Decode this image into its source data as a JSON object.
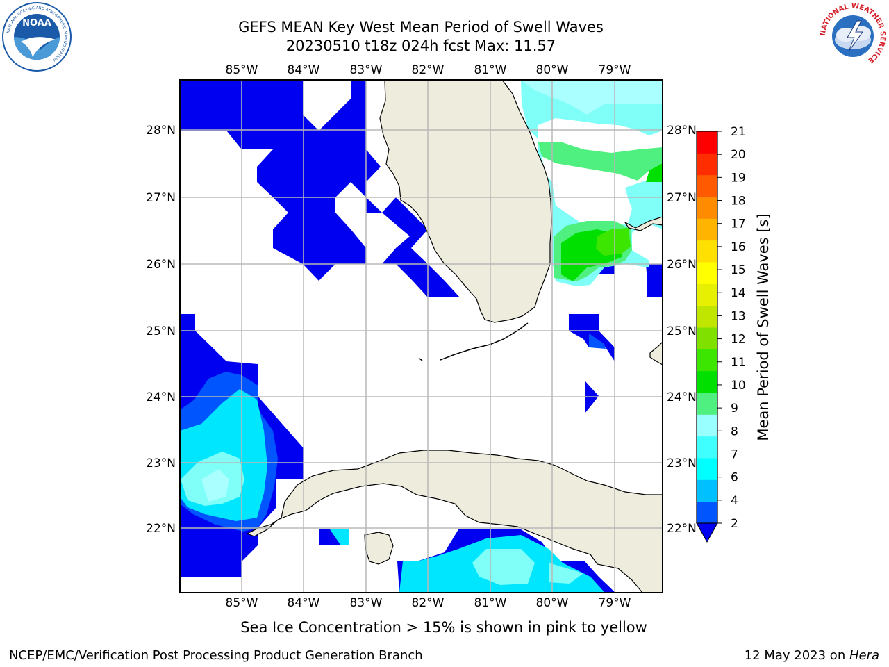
{
  "header": {
    "title_line1": "GEFS MEAN Key West Mean Period of Swell Waves",
    "title_line2": "20230510 t18z 024h fcst   Max: 11.57"
  },
  "logos": {
    "left": {
      "name": "NOAA",
      "ring_text": "NATIONAL OCEANIC AND ATMOSPHERIC ADMINISTRATION",
      "bottom_text": "U.S. DEPARTMENT OF COMMERCE",
      "color": "#1a5aa8"
    },
    "right": {
      "name": "NATIONAL WEATHER SERVICE",
      "color": "#d4202a"
    }
  },
  "map": {
    "lon_labels": [
      "85°W",
      "84°W",
      "83°W",
      "82°W",
      "81°W",
      "80°W",
      "79°W"
    ],
    "lat_labels": [
      "28°N",
      "27°N",
      "26°N",
      "25°N",
      "24°N",
      "23°N",
      "22°N"
    ],
    "land_color": "#eeecdd",
    "grid": true
  },
  "colorbar": {
    "label": "Mean Period of Swell Waves [s]",
    "ticks": [
      "2",
      "4",
      "6",
      "7",
      "8",
      "9",
      "10",
      "11",
      "12",
      "13",
      "14",
      "15",
      "16",
      "17",
      "18",
      "19",
      "20",
      "21"
    ],
    "colors": [
      "#0055ff",
      "#00c0ff",
      "#00ffff",
      "#40ffff",
      "#99ffff",
      "#50f080",
      "#00e000",
      "#3ce600",
      "#80e000",
      "#c0e600",
      "#e6f000",
      "#ffff00",
      "#ffe000",
      "#ffb400",
      "#ff8c00",
      "#ff5a00",
      "#ff2d00",
      "#ff0000"
    ],
    "under_color": "#0000f0"
  },
  "notes": {
    "sea_ice": "Sea Ice Concentration > 15% is shown in pink to yellow"
  },
  "footer": {
    "left": "NCEP/EMC/Verification Post Processing Product Generation Branch",
    "date": "12 May 2023 on ",
    "machine": "Hera"
  }
}
